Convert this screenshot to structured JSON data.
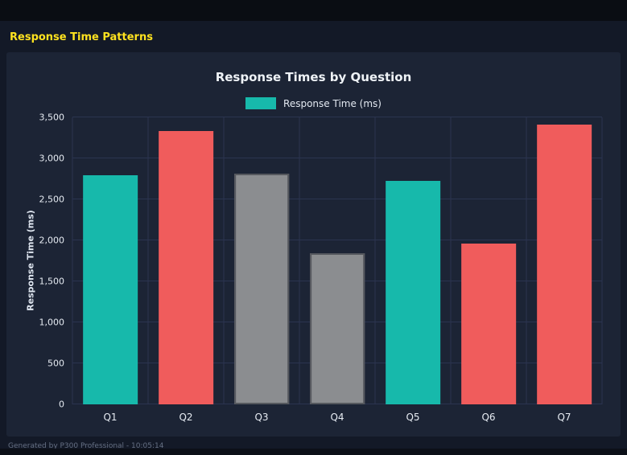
{
  "header": {
    "title": "Response Time Patterns"
  },
  "footer": {
    "text": "Generated by P300 Professional - 10:05:14"
  },
  "colors": {
    "teal": "#17b9ab",
    "red": "#f05c5c",
    "gray": "#8b8d90",
    "gray_border": "#55585e",
    "title_yellow": "#ffe21f",
    "panel_bg": "#1c2435",
    "page_bg": "#131927",
    "gridline": "#2b3450"
  },
  "chart_data": {
    "type": "bar",
    "title": "Response Times by Question",
    "legend": "Response Time (ms)",
    "legend_position": "top",
    "xlabel": "",
    "ylabel": "Response Time (ms)",
    "categories": [
      "Q1",
      "Q2",
      "Q3",
      "Q4",
      "Q5",
      "Q6",
      "Q7"
    ],
    "values": [
      2790,
      3330,
      2810,
      1845,
      2730,
      1960,
      3410
    ],
    "bar_colors": [
      "#17b9ab",
      "#f05c5c",
      "#8b8d90",
      "#8b8d90",
      "#17b9ab",
      "#f05c5c",
      "#f05c5c"
    ],
    "bar_border_colors": [
      null,
      null,
      "#55585e",
      "#55585e",
      null,
      null,
      null
    ],
    "ylim": [
      0,
      3500
    ],
    "yticks": [
      0,
      500,
      1000,
      1500,
      2000,
      2500,
      3000,
      3500
    ],
    "ytick_labels": [
      "0",
      "500",
      "1,000",
      "1,500",
      "2,000",
      "2,500",
      "3,000",
      "3,500"
    ],
    "grid": true
  }
}
